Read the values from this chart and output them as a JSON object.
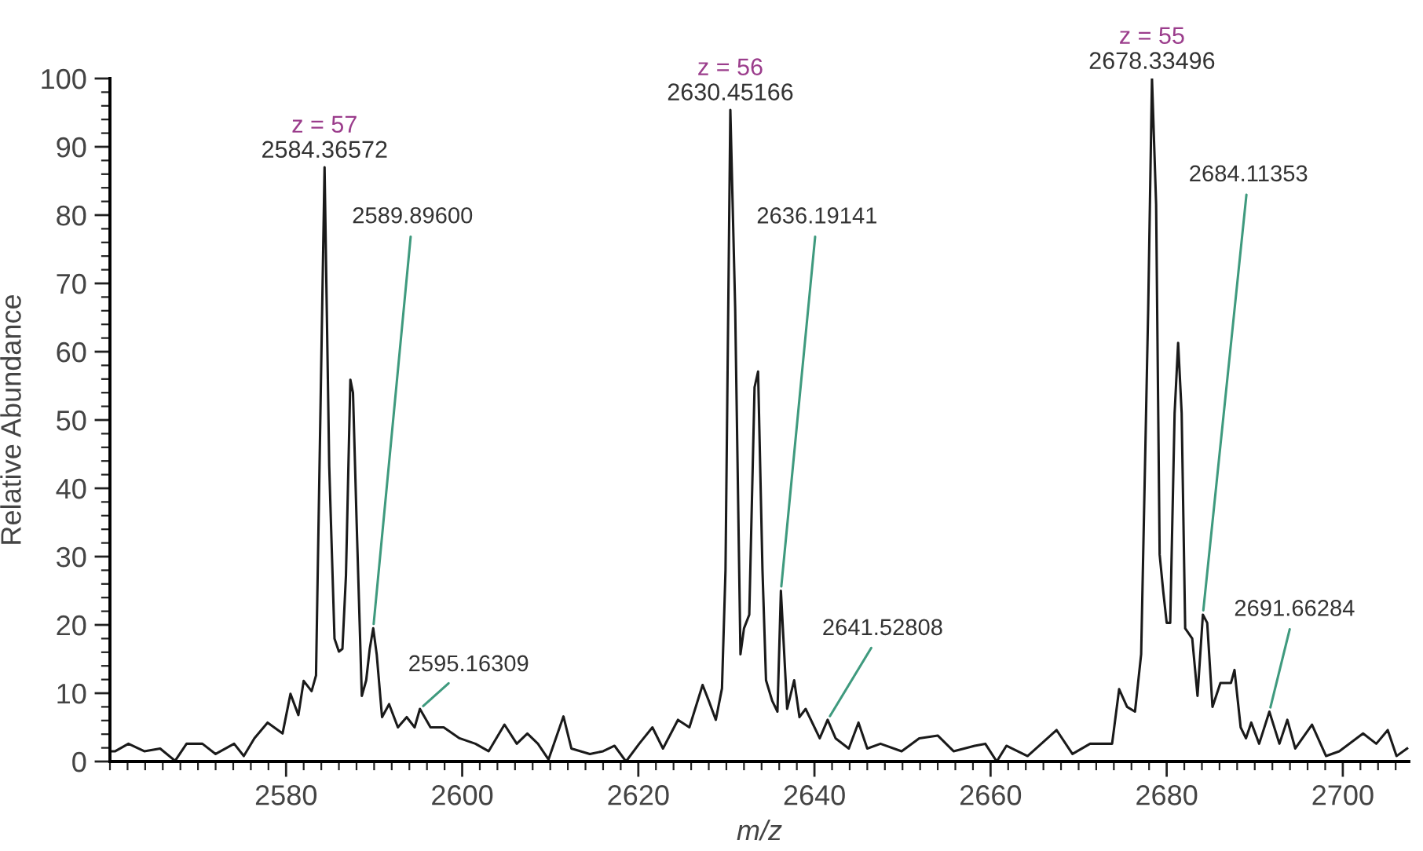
{
  "chart_data": {
    "type": "line",
    "xlabel": "m/z",
    "ylabel": "Relative Abundance",
    "x": [
      2560.0,
      2560.6,
      2562.1,
      2563.9,
      2565.7,
      2567.4,
      2568.7,
      2570.5,
      2572.0,
      2574.1,
      2575.2,
      2576.4,
      2577.9,
      2579.6,
      2580.5,
      2581.4,
      2582.0,
      2582.9,
      2583.4,
      2584.37,
      2584.9,
      2585.5,
      2586.0,
      2586.4,
      2586.8,
      2587.3,
      2587.6,
      2588.0,
      2588.6,
      2589.1,
      2589.5,
      2589.9,
      2590.3,
      2590.9,
      2591.7,
      2592.7,
      2593.7,
      2594.6,
      2595.2,
      2596.4,
      2597.9,
      2599.7,
      2601.5,
      2603.0,
      2604.8,
      2606.2,
      2607.4,
      2608.6,
      2609.8,
      2611.5,
      2612.4,
      2614.5,
      2616.0,
      2617.3,
      2618.6,
      2620.1,
      2621.6,
      2622.8,
      2624.5,
      2625.8,
      2627.3,
      2628.0,
      2628.8,
      2629.5,
      2629.9,
      2630.45,
      2631.0,
      2631.6,
      2632.0,
      2632.6,
      2633.2,
      2633.6,
      2634.1,
      2634.5,
      2635.2,
      2635.8,
      2636.19,
      2636.9,
      2637.7,
      2638.3,
      2639.0,
      2640.6,
      2641.5,
      2642.4,
      2643.9,
      2645.0,
      2646.0,
      2647.5,
      2649.9,
      2651.9,
      2654.0,
      2655.8,
      2658.2,
      2659.4,
      2660.7,
      2661.8,
      2664.2,
      2667.5,
      2669.3,
      2671.3,
      2673.8,
      2674.6,
      2675.5,
      2676.4,
      2677.1,
      2677.9,
      2678.33,
      2678.8,
      2679.2,
      2679.6,
      2680.0,
      2680.4,
      2680.9,
      2681.3,
      2681.7,
      2682.1,
      2682.9,
      2683.5,
      2684.11,
      2684.6,
      2685.2,
      2686.1,
      2687.3,
      2687.7,
      2688.4,
      2689.0,
      2689.6,
      2690.5,
      2691.66,
      2692.8,
      2693.7,
      2694.6,
      2696.5,
      2698.1,
      2699.6,
      2702.3,
      2703.8,
      2705.1,
      2706.1,
      2707.3
    ],
    "series": [
      {
        "color": "#1a1a1a",
        "values": [
          1.5,
          1.5,
          2.6,
          1.5,
          1.9,
          0.1,
          2.6,
          2.6,
          1.1,
          2.6,
          0.8,
          3.4,
          5.7,
          4.1,
          9.9,
          6.8,
          11.8,
          10.3,
          12.6,
          87,
          43.3,
          18.0,
          16.1,
          16.5,
          27.2,
          55.9,
          54,
          35.6,
          9.6,
          11.9,
          16.5,
          19.5,
          15.6,
          6.5,
          8.4,
          5.0,
          6.5,
          5.0,
          7.7,
          5.0,
          5.0,
          3.4,
          2.6,
          1.5,
          5.4,
          2.6,
          4.1,
          2.6,
          0.3,
          6.6,
          1.9,
          1.1,
          1.5,
          2.3,
          0.0,
          2.6,
          5.0,
          1.9,
          6.1,
          5.0,
          11.2,
          8.9,
          6.1,
          10.7,
          28,
          95.4,
          66.3,
          15.7,
          19.5,
          21.5,
          54.8,
          57.1,
          28,
          11.9,
          8.9,
          7.3,
          25,
          7.7,
          11.9,
          6.5,
          7.7,
          3.4,
          6.1,
          3.4,
          1.9,
          5.7,
          1.9,
          2.6,
          1.5,
          3.4,
          3.8,
          1.5,
          2.3,
          2.6,
          0.0,
          2.3,
          0.8,
          4.6,
          1.1,
          2.6,
          2.6,
          10.6,
          8.0,
          7.3,
          15.7,
          66.3,
          100,
          81.6,
          30.3,
          25,
          20.3,
          20.3,
          51,
          61.3,
          51,
          19.5,
          18.0,
          9.6,
          21.5,
          20.3,
          8.0,
          11.5,
          11.5,
          13.4,
          5.0,
          3.4,
          5.7,
          2.6,
          7.3,
          2.6,
          6.1,
          1.9,
          5.4,
          0.8,
          1.5,
          4.1,
          2.6,
          4.6,
          0.8,
          1.9
        ]
      }
    ],
    "xlim": [
      2560,
      2707.5
    ],
    "ylim": [
      0,
      100
    ],
    "xticks": [
      2580,
      2600,
      2620,
      2640,
      2660,
      2680,
      2700,
      {
        "value": 2560,
        "label": null
      },
      {
        "value": 2562,
        "label": null
      },
      {
        "value": 2564,
        "label": null
      },
      {
        "value": 2566,
        "label": null
      },
      {
        "value": 2568,
        "label": null
      },
      {
        "value": 2570,
        "label": null
      },
      {
        "value": 2572,
        "label": null
      },
      {
        "value": 2574,
        "label": null
      },
      {
        "value": 2576,
        "label": null
      },
      {
        "value": 2578,
        "label": null
      },
      {
        "value": 2582,
        "label": null
      },
      {
        "value": 2584,
        "label": null
      },
      {
        "value": 2586,
        "label": null
      },
      {
        "value": 2588,
        "label": null
      },
      {
        "value": 2590,
        "label": null
      },
      {
        "value": 2592,
        "label": null
      },
      {
        "value": 2594,
        "label": null
      },
      {
        "value": 2596,
        "label": null
      },
      {
        "value": 2598,
        "label": null
      },
      {
        "value": 2602,
        "label": null
      },
      {
        "value": 2604,
        "label": null
      },
      {
        "value": 2606,
        "label": null
      },
      {
        "value": 2608,
        "label": null
      },
      {
        "value": 2610,
        "label": null
      },
      {
        "value": 2612,
        "label": null
      },
      {
        "value": 2614,
        "label": null
      },
      {
        "value": 2616,
        "label": null
      },
      {
        "value": 2618,
        "label": null
      },
      {
        "value": 2622,
        "label": null
      },
      {
        "value": 2624,
        "label": null
      },
      {
        "value": 2626,
        "label": null
      },
      {
        "value": 2628,
        "label": null
      },
      {
        "value": 2630,
        "label": null
      },
      {
        "value": 2632,
        "label": null
      },
      {
        "value": 2634,
        "label": null
      },
      {
        "value": 2636,
        "label": null
      },
      {
        "value": 2638,
        "label": null
      },
      {
        "value": 2642,
        "label": null
      },
      {
        "value": 2644,
        "label": null
      },
      {
        "value": 2646,
        "label": null
      },
      {
        "value": 2648,
        "label": null
      },
      {
        "value": 2650,
        "label": null
      },
      {
        "value": 2652,
        "label": null
      },
      {
        "value": 2654,
        "label": null
      },
      {
        "value": 2656,
        "label": null
      },
      {
        "value": 2658,
        "label": null
      },
      {
        "value": 2662,
        "label": null
      },
      {
        "value": 2664,
        "label": null
      },
      {
        "value": 2666,
        "label": null
      },
      {
        "value": 2668,
        "label": null
      },
      {
        "value": 2670,
        "label": null
      },
      {
        "value": 2672,
        "label": null
      },
      {
        "value": 2674,
        "label": null
      },
      {
        "value": 2676,
        "label": null
      },
      {
        "value": 2678,
        "label": null
      },
      {
        "value": 2682,
        "label": null
      },
      {
        "value": 2684,
        "label": null
      },
      {
        "value": 2686,
        "label": null
      },
      {
        "value": 2688,
        "label": null
      },
      {
        "value": 2690,
        "label": null
      },
      {
        "value": 2692,
        "label": null
      },
      {
        "value": 2694,
        "label": null
      },
      {
        "value": 2696,
        "label": null
      },
      {
        "value": 2698,
        "label": null
      },
      {
        "value": 2702,
        "label": null
      },
      {
        "value": 2704,
        "label": null
      },
      {
        "value": 2706,
        "label": null
      }
    ],
    "yticks": [
      0,
      10,
      20,
      30,
      40,
      50,
      60,
      70,
      80,
      90,
      100,
      {
        "value": 2,
        "label": null
      },
      {
        "value": 4,
        "label": null
      },
      {
        "value": 6,
        "label": null
      },
      {
        "value": 8,
        "label": null
      },
      {
        "value": 12,
        "label": null
      },
      {
        "value": 14,
        "label": null
      },
      {
        "value": 16,
        "label": null
      },
      {
        "value": 18,
        "label": null
      },
      {
        "value": 22,
        "label": null
      },
      {
        "value": 24,
        "label": null
      },
      {
        "value": 26,
        "label": null
      },
      {
        "value": 28,
        "label": null
      },
      {
        "value": 32,
        "label": null
      },
      {
        "value": 34,
        "label": null
      },
      {
        "value": 36,
        "label": null
      },
      {
        "value": 38,
        "label": null
      },
      {
        "value": 42,
        "label": null
      },
      {
        "value": 44,
        "label": null
      },
      {
        "value": 46,
        "label": null
      },
      {
        "value": 48,
        "label": null
      },
      {
        "value": 52,
        "label": null
      },
      {
        "value": 54,
        "label": null
      },
      {
        "value": 56,
        "label": null
      },
      {
        "value": 58,
        "label": null
      },
      {
        "value": 62,
        "label": null
      },
      {
        "value": 64,
        "label": null
      },
      {
        "value": 66,
        "label": null
      },
      {
        "value": 68,
        "label": null
      },
      {
        "value": 72,
        "label": null
      },
      {
        "value": 74,
        "label": null
      },
      {
        "value": 76,
        "label": null
      },
      {
        "value": 78,
        "label": null
      },
      {
        "value": 82,
        "label": null
      },
      {
        "value": 84,
        "label": null
      },
      {
        "value": 86,
        "label": null
      },
      {
        "value": 88,
        "label": null
      },
      {
        "value": 92,
        "label": null
      },
      {
        "value": 94,
        "label": null
      },
      {
        "value": 96,
        "label": null
      },
      {
        "value": 98,
        "label": null
      }
    ],
    "grid": false,
    "legend": false,
    "marker": "none",
    "line_style": "solid",
    "annotations": [
      "z = 57",
      {
        "text": "2584.36572",
        "x": 2584.37,
        "y": 87
      },
      {
        "text": "2589.89600",
        "x": 2589.9,
        "y": 19.5
      },
      {
        "text": "2595.16309",
        "x": 2595.2,
        "y": 7.7
      },
      "z = 56",
      {
        "text": "2630.45166",
        "x": 2630.45,
        "y": 95.4
      },
      {
        "text": "2636.19141",
        "x": 2636.19,
        "y": 25
      },
      {
        "text": "2641.52808",
        "x": 2641.5,
        "y": 6.1
      },
      "z = 55",
      {
        "text": "2678.33496",
        "x": 2678.33,
        "y": 100
      },
      {
        "text": "2684.11353",
        "x": 2684.11,
        "y": 21.5
      },
      {
        "text": "2691.66284",
        "x": 2691.66,
        "y": 7.3
      }
    ]
  }
}
